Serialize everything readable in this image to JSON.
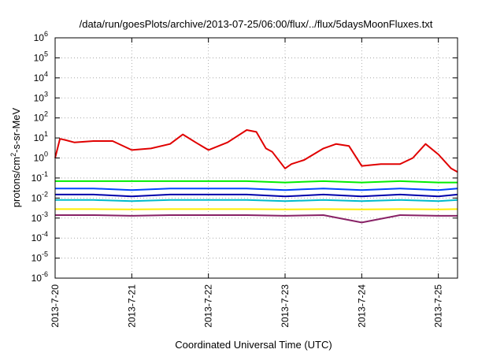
{
  "chart_data": {
    "type": "line",
    "title": "/data/run/goesPlots/archive/2013-07-25/06:00/flux/../flux/5daysMoonFluxes.txt",
    "xlabel": "Coordinated Universal Time (UTC)",
    "ylabel": "protons/cm²-s-sr-MeV",
    "y_scale": "log",
    "ylim": [
      1e-06,
      1000000.0
    ],
    "y_ticks": [
      {
        "base": "10",
        "exp": "-6",
        "value": 1e-06
      },
      {
        "base": "10",
        "exp": "-5",
        "value": 1e-05
      },
      {
        "base": "10",
        "exp": "-4",
        "value": 0.0001
      },
      {
        "base": "10",
        "exp": "-3",
        "value": 0.001
      },
      {
        "base": "10",
        "exp": "-2",
        "value": 0.01
      },
      {
        "base": "10",
        "exp": "-1",
        "value": 0.1
      },
      {
        "base": "10",
        "exp": "0",
        "value": 1
      },
      {
        "base": "10",
        "exp": "1",
        "value": 10
      },
      {
        "base": "10",
        "exp": "2",
        "value": 100
      },
      {
        "base": "10",
        "exp": "3",
        "value": 1000
      },
      {
        "base": "10",
        "exp": "4",
        "value": 10000
      },
      {
        "base": "10",
        "exp": "5",
        "value": 100000
      },
      {
        "base": "10",
        "exp": "6",
        "value": 1000000
      }
    ],
    "xlim": [
      "2013-07-20 00:00",
      "2013-07-25 06:00"
    ],
    "x_ticks": [
      {
        "label": "2013-7-20",
        "value": "2013-07-20 00:00"
      },
      {
        "label": "2013-7-21",
        "value": "2013-07-21 00:00"
      },
      {
        "label": "2013-7-22",
        "value": "2013-07-22 00:00"
      },
      {
        "label": "2013-7-23",
        "value": "2013-07-23 00:00"
      },
      {
        "label": "2013-7-24",
        "value": "2013-07-24 00:00"
      },
      {
        "label": "2013-7-25",
        "value": "2013-07-25 00:00"
      }
    ],
    "grid": true,
    "series": [
      {
        "color": "#e00000",
        "x": [
          "2013-07-20 00:00",
          "2013-07-20 01:30",
          "2013-07-20 03:00",
          "2013-07-20 06:00",
          "2013-07-20 12:00",
          "2013-07-20 18:00",
          "2013-07-21 00:00",
          "2013-07-21 06:00",
          "2013-07-21 12:00",
          "2013-07-21 16:00",
          "2013-07-21 20:00",
          "2013-07-22 00:00",
          "2013-07-22 06:00",
          "2013-07-22 12:00",
          "2013-07-22 15:00",
          "2013-07-22 18:00",
          "2013-07-22 20:00",
          "2013-07-23 00:00",
          "2013-07-23 02:00",
          "2013-07-23 06:00",
          "2013-07-23 12:00",
          "2013-07-23 16:00",
          "2013-07-23 20:00",
          "2013-07-24 00:00",
          "2013-07-24 06:00",
          "2013-07-24 12:00",
          "2013-07-24 16:00",
          "2013-07-24 20:00",
          "2013-07-25 00:00",
          "2013-07-25 04:00",
          "2013-07-25 06:00"
        ],
        "values": [
          1.0,
          9,
          8,
          6,
          7,
          7,
          2.5,
          3,
          5,
          15,
          6,
          2.5,
          6,
          25,
          20,
          3,
          2,
          0.3,
          0.5,
          0.8,
          3,
          5,
          4,
          0.4,
          0.5,
          0.5,
          1.0,
          5,
          1.5,
          0.3,
          0.2
        ]
      },
      {
        "color": "#00ee00",
        "x": [
          "2013-07-20 00:00",
          "2013-07-20 12:00",
          "2013-07-21 00:00",
          "2013-07-21 12:00",
          "2013-07-22 00:00",
          "2013-07-22 12:00",
          "2013-07-23 00:00",
          "2013-07-23 12:00",
          "2013-07-24 00:00",
          "2013-07-24 12:00",
          "2013-07-25 00:00",
          "2013-07-25 06:00"
        ],
        "values": [
          0.07,
          0.07,
          0.07,
          0.07,
          0.07,
          0.07,
          0.06,
          0.07,
          0.06,
          0.07,
          0.06,
          0.06
        ]
      },
      {
        "color": "#0044ff",
        "x": [
          "2013-07-20 00:00",
          "2013-07-20 12:00",
          "2013-07-21 00:00",
          "2013-07-21 12:00",
          "2013-07-22 00:00",
          "2013-07-22 12:00",
          "2013-07-23 00:00",
          "2013-07-23 12:00",
          "2013-07-24 00:00",
          "2013-07-24 12:00",
          "2013-07-25 00:00",
          "2013-07-25 06:00"
        ],
        "values": [
          0.03,
          0.03,
          0.025,
          0.03,
          0.03,
          0.03,
          0.025,
          0.03,
          0.025,
          0.03,
          0.025,
          0.03
        ]
      },
      {
        "color": "#0000aa",
        "x": [
          "2013-07-20 00:00",
          "2013-07-20 12:00",
          "2013-07-21 00:00",
          "2013-07-21 12:00",
          "2013-07-22 00:00",
          "2013-07-22 12:00",
          "2013-07-23 00:00",
          "2013-07-23 12:00",
          "2013-07-24 00:00",
          "2013-07-24 12:00",
          "2013-07-25 00:00",
          "2013-07-25 06:00"
        ],
        "values": [
          0.015,
          0.015,
          0.012,
          0.015,
          0.015,
          0.015,
          0.012,
          0.015,
          0.012,
          0.015,
          0.012,
          0.015
        ]
      },
      {
        "color": "#00bbcc",
        "x": [
          "2013-07-20 00:00",
          "2013-07-20 12:00",
          "2013-07-21 00:00",
          "2013-07-21 12:00",
          "2013-07-22 00:00",
          "2013-07-22 12:00",
          "2013-07-23 00:00",
          "2013-07-23 12:00",
          "2013-07-24 00:00",
          "2013-07-24 12:00",
          "2013-07-25 00:00",
          "2013-07-25 06:00"
        ],
        "values": [
          0.008,
          0.008,
          0.007,
          0.008,
          0.008,
          0.008,
          0.007,
          0.008,
          0.007,
          0.008,
          0.007,
          0.008
        ]
      },
      {
        "color": "#ffee00",
        "x": [
          "2013-07-20 00:00",
          "2013-07-20 12:00",
          "2013-07-21 00:00",
          "2013-07-21 12:00",
          "2013-07-22 00:00",
          "2013-07-22 12:00",
          "2013-07-23 00:00",
          "2013-07-23 12:00",
          "2013-07-24 00:00",
          "2013-07-24 12:00",
          "2013-07-25 00:00",
          "2013-07-25 06:00"
        ],
        "values": [
          0.0028,
          0.0028,
          0.0027,
          0.0028,
          0.0028,
          0.0028,
          0.0027,
          0.0028,
          0.0027,
          0.0028,
          0.0027,
          0.0028
        ]
      },
      {
        "color": "#882266",
        "x": [
          "2013-07-20 00:00",
          "2013-07-20 12:00",
          "2013-07-21 00:00",
          "2013-07-21 12:00",
          "2013-07-22 00:00",
          "2013-07-22 12:00",
          "2013-07-23 00:00",
          "2013-07-23 12:00",
          "2013-07-24 00:00",
          "2013-07-24 12:00",
          "2013-07-25 00:00",
          "2013-07-25 06:00"
        ],
        "values": [
          0.0014,
          0.0014,
          0.0013,
          0.0014,
          0.0014,
          0.0014,
          0.0013,
          0.0014,
          0.0006,
          0.0014,
          0.0013,
          0.0013
        ]
      }
    ]
  }
}
